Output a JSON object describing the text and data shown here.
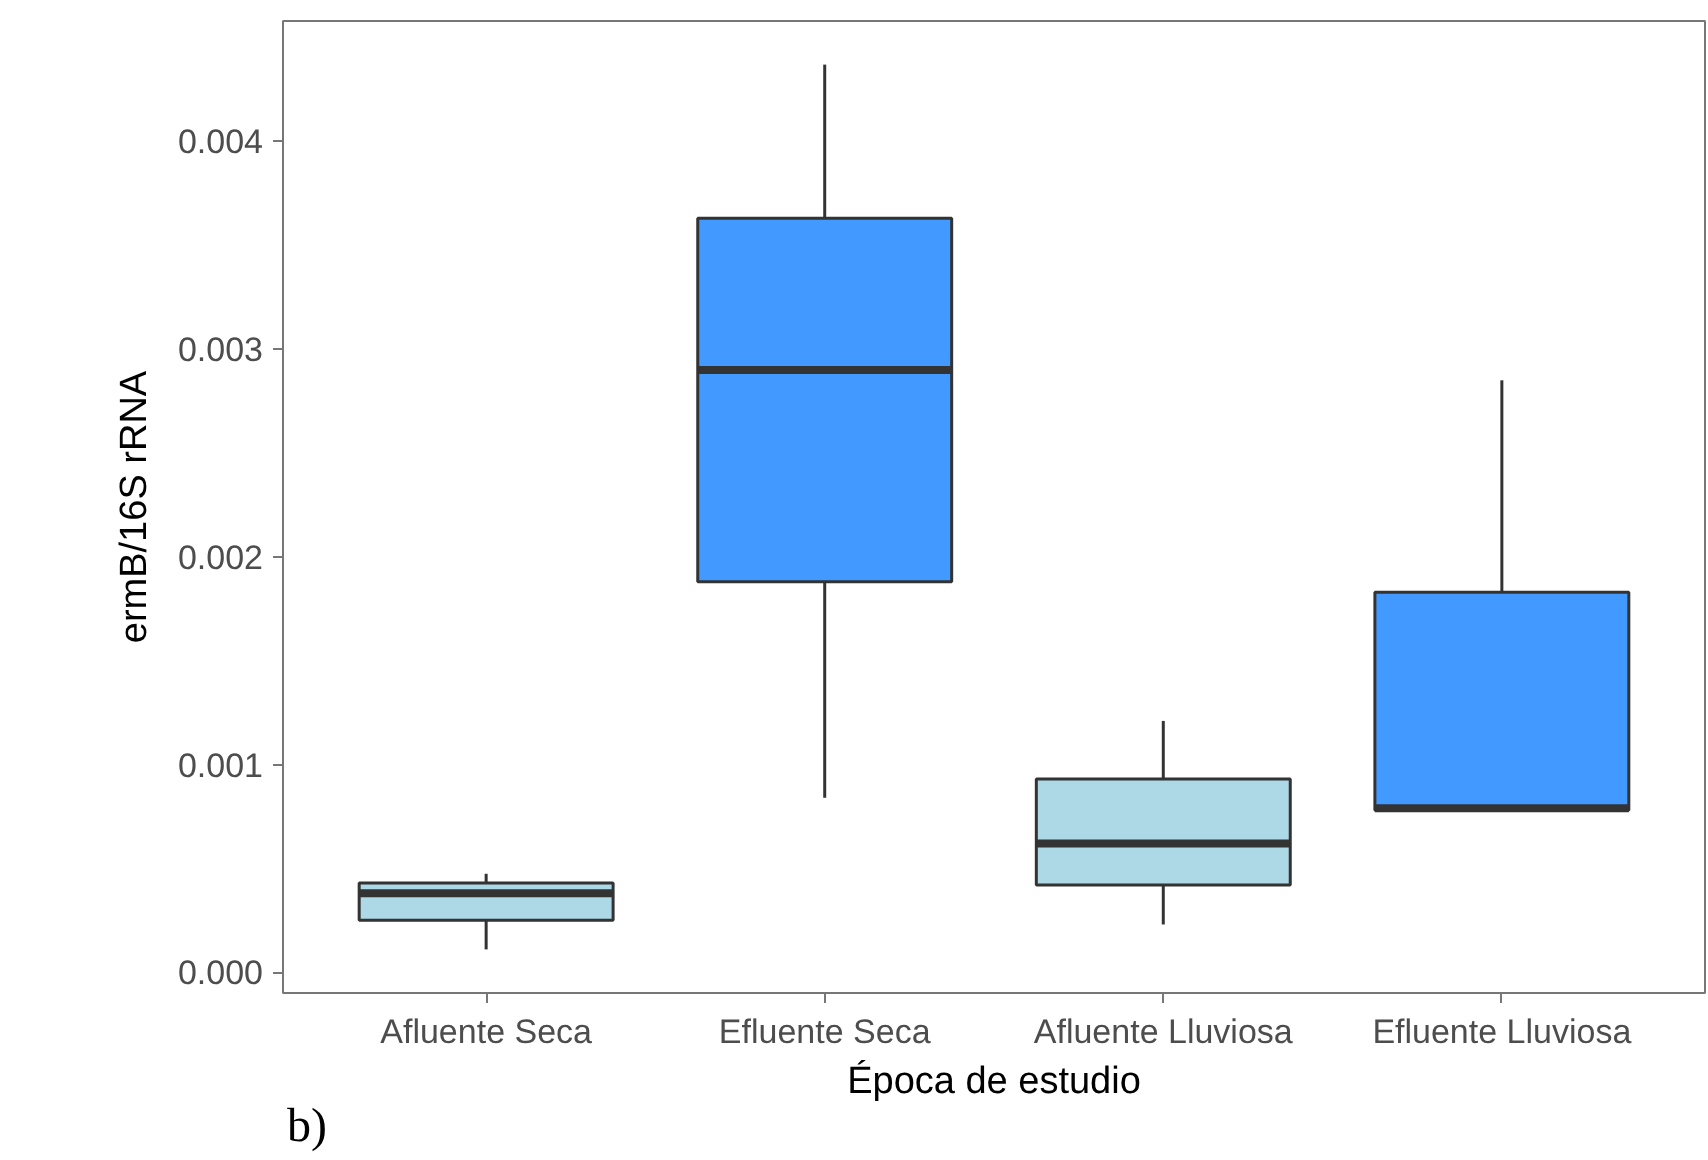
{
  "chart_data": {
    "type": "box",
    "xlabel": "Época de estudio",
    "ylabel": "ermB/16S rRNA",
    "categories": [
      "Afluente Seca",
      "Efluente Seca",
      "Afluente Lluviosa",
      "Efluente Lluviosa"
    ],
    "boxes": [
      {
        "low": 0.00011,
        "q1": 0.00025,
        "median": 0.00038,
        "q3": 0.00043,
        "high": 0.000474
      },
      {
        "low": 0.00084,
        "q1": 0.00188,
        "median": 0.0029,
        "q3": 0.00363,
        "high": 0.00437
      },
      {
        "low": 0.00023,
        "q1": 0.00042,
        "median": 0.00062,
        "q3": 0.00093,
        "high": 0.00121
      },
      {
        "low": 0.00078,
        "q1": 0.00078,
        "median": 0.00079,
        "q3": 0.00183,
        "high": 0.00285
      }
    ],
    "colors": [
      "#add8e6",
      "#4299ff",
      "#add8e6",
      "#4299ff"
    ],
    "ylim": [
      -0.0001,
      0.00458
    ],
    "yticks": [
      {
        "value": 0,
        "label": "0.000"
      },
      {
        "value": 0.001,
        "label": "0.001"
      },
      {
        "value": 0.002,
        "label": "0.002"
      },
      {
        "value": 0.003,
        "label": "0.003"
      },
      {
        "value": 0.004,
        "label": "0.004"
      }
    ],
    "grid": false,
    "annotations": [
      "b)"
    ]
  }
}
